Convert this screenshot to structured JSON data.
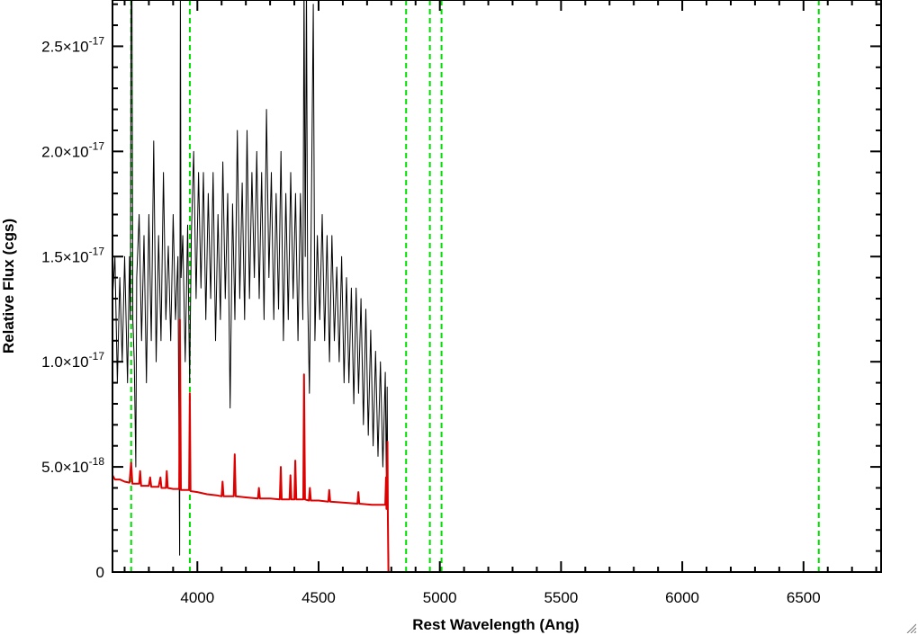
{
  "chart_data": {
    "type": "line",
    "title": "",
    "xlabel": "Rest Wavelength (Ang)",
    "ylabel": "Relative Flux (cgs)",
    "xlim": [
      3650,
      6820
    ],
    "ylim": [
      0,
      2.72e-17
    ],
    "x_ticks": [
      {
        "value": 4000,
        "label": "4000"
      },
      {
        "value": 4500,
        "label": "4500"
      },
      {
        "value": 5000,
        "label": "5000"
      },
      {
        "value": 5500,
        "label": "5500"
      },
      {
        "value": 6000,
        "label": "6000"
      },
      {
        "value": 6500,
        "label": "6500"
      }
    ],
    "y_ticks": [
      {
        "value": 0,
        "mantissa": "0",
        "exponent": ""
      },
      {
        "value": 5e-18,
        "mantissa": "5.0×10",
        "exponent": "-18"
      },
      {
        "value": 1e-17,
        "mantissa": "1.0×10",
        "exponent": "-17"
      },
      {
        "value": 1.5e-17,
        "mantissa": "1.5×10",
        "exponent": "-17"
      },
      {
        "value": 2e-17,
        "mantissa": "2.0×10",
        "exponent": "-17"
      },
      {
        "value": 2.5e-17,
        "mantissa": "2.5×10",
        "exponent": "-17"
      }
    ],
    "x_minor_step": 100,
    "y_minor_step": 1e-18,
    "grid": false,
    "legend": "none",
    "vertical_lines": [
      {
        "x": 3727,
        "color": "#00dd00",
        "style": "dashed"
      },
      {
        "x": 3969,
        "color": "#00dd00",
        "style": "dashed"
      },
      {
        "x": 4861,
        "color": "#00dd00",
        "style": "dashed"
      },
      {
        "x": 4959,
        "color": "#00dd00",
        "style": "dashed"
      },
      {
        "x": 5007,
        "color": "#00dd00",
        "style": "dashed"
      },
      {
        "x": 6563,
        "color": "#00dd00",
        "style": "dashed"
      }
    ],
    "series": [
      {
        "color": "#000000",
        "points": [
          [
            3650,
            1.3e-17
          ],
          [
            3660,
            1.5e-17
          ],
          [
            3670,
            9e-18
          ],
          [
            3680,
            1.4e-17
          ],
          [
            3690,
            1e-17
          ],
          [
            3700,
            1.5e-17
          ],
          [
            3712,
            9e-18
          ],
          [
            3720,
            1.5e-17
          ],
          [
            3724,
            1.2e-17
          ],
          [
            3727,
            2.8e-17
          ],
          [
            3730,
            2.8e-17
          ],
          [
            3734,
            1.2e-17
          ],
          [
            3740,
            1e-17
          ],
          [
            3746,
            5e-18
          ],
          [
            3750,
            1.4e-17
          ],
          [
            3760,
            1.7e-17
          ],
          [
            3770,
            1.1e-17
          ],
          [
            3780,
            1.6e-17
          ],
          [
            3790,
            9e-18
          ],
          [
            3800,
            1.7e-17
          ],
          [
            3810,
            1.1e-17
          ],
          [
            3820,
            2.05e-17
          ],
          [
            3830,
            1e-17
          ],
          [
            3840,
            1.6e-17
          ],
          [
            3850,
            1.1e-17
          ],
          [
            3860,
            1.9e-17
          ],
          [
            3870,
            1.2e-17
          ],
          [
            3880,
            1.55e-17
          ],
          [
            3890,
            1.1e-17
          ],
          [
            3900,
            1.7e-17
          ],
          [
            3910,
            1.2e-17
          ],
          [
            3920,
            1.5e-17
          ],
          [
            3927,
            8e-19
          ],
          [
            3930,
            2.8e-17
          ],
          [
            3933,
            1.4e-17
          ],
          [
            3940,
            1.6e-17
          ],
          [
            3950,
            1e-17
          ],
          [
            3960,
            1.65e-17
          ],
          [
            3968,
            9e-18
          ],
          [
            3975,
            1.6e-17
          ],
          [
            3985,
            2e-17
          ],
          [
            3995,
            1.3e-17
          ],
          [
            4005,
            1.9e-17
          ],
          [
            4015,
            1.35e-17
          ],
          [
            4025,
            1.9e-17
          ],
          [
            4035,
            1.2e-17
          ],
          [
            4045,
            1.8e-17
          ],
          [
            4055,
            1.3e-17
          ],
          [
            4065,
            1.9e-17
          ],
          [
            4075,
            1.1e-17
          ],
          [
            4085,
            1.7e-17
          ],
          [
            4095,
            1.2e-17
          ],
          [
            4105,
            1.95e-17
          ],
          [
            4115,
            1.3e-17
          ],
          [
            4125,
            1.8e-17
          ],
          [
            4135,
            7.8e-18
          ],
          [
            4145,
            1.75e-17
          ],
          [
            4155,
            1.2e-17
          ],
          [
            4165,
            2.1e-17
          ],
          [
            4175,
            1.3e-17
          ],
          [
            4185,
            1.85e-17
          ],
          [
            4195,
            1.2e-17
          ],
          [
            4205,
            2.1e-17
          ],
          [
            4215,
            1.3e-17
          ],
          [
            4225,
            1.9e-17
          ],
          [
            4235,
            1.4e-17
          ],
          [
            4245,
            2e-17
          ],
          [
            4255,
            1.3e-17
          ],
          [
            4265,
            1.9e-17
          ],
          [
            4275,
            1.2e-17
          ],
          [
            4285,
            2.2e-17
          ],
          [
            4295,
            1.4e-17
          ],
          [
            4305,
            1.9e-17
          ],
          [
            4315,
            1.2e-17
          ],
          [
            4325,
            1.8e-17
          ],
          [
            4335,
            1.25e-17
          ],
          [
            4345,
            2e-17
          ],
          [
            4355,
            1.1e-17
          ],
          [
            4365,
            1.8e-17
          ],
          [
            4375,
            1.2e-17
          ],
          [
            4385,
            1.9e-17
          ],
          [
            4395,
            1.3e-17
          ],
          [
            4405,
            1.8e-17
          ],
          [
            4415,
            1.1e-17
          ],
          [
            4425,
            1.8e-17
          ],
          [
            4435,
            1.2e-17
          ],
          [
            4440,
            2.8e-17
          ],
          [
            4445,
            1.5e-17
          ],
          [
            4450,
            2.8e-17
          ],
          [
            4455,
            1.3e-17
          ],
          [
            4462,
            8.5e-18
          ],
          [
            4470,
            1.7e-17
          ],
          [
            4478,
            2.7e-17
          ],
          [
            4485,
            1.1e-17
          ],
          [
            4495,
            1.6e-17
          ],
          [
            4505,
            1.2e-17
          ],
          [
            4515,
            1.7e-17
          ],
          [
            4525,
            1.1e-17
          ],
          [
            4535,
            1.6e-17
          ],
          [
            4545,
            1e-17
          ],
          [
            4555,
            1.6e-17
          ],
          [
            4565,
            1.1e-17
          ],
          [
            4575,
            1.45e-17
          ],
          [
            4585,
            1e-17
          ],
          [
            4595,
            1.5e-17
          ],
          [
            4605,
            9e-18
          ],
          [
            4615,
            1.4e-17
          ],
          [
            4625,
            9e-18
          ],
          [
            4635,
            1.35e-17
          ],
          [
            4645,
            8e-18
          ],
          [
            4655,
            1.35e-17
          ],
          [
            4665,
            8.5e-18
          ],
          [
            4675,
            1.3e-17
          ],
          [
            4685,
            7e-18
          ],
          [
            4695,
            1.25e-17
          ],
          [
            4705,
            6.5e-18
          ],
          [
            4715,
            1.15e-17
          ],
          [
            4725,
            6e-18
          ],
          [
            4735,
            1.05e-17
          ],
          [
            4745,
            5.5e-18
          ],
          [
            4755,
            1e-17
          ],
          [
            4765,
            5e-18
          ],
          [
            4775,
            9.5e-18
          ],
          [
            4780,
            4e-18
          ],
          [
            4783,
            8.8e-18
          ],
          [
            4786,
            2e-18
          ],
          [
            4790,
            0
          ],
          [
            4800,
            0
          ],
          [
            6820,
            0
          ]
        ]
      },
      {
        "color": "#dd0000",
        "points": [
          [
            3650,
            4.6e-18
          ],
          [
            3660,
            4.4e-18
          ],
          [
            3680,
            4.4e-18
          ],
          [
            3700,
            4.3e-18
          ],
          [
            3720,
            4.25e-18
          ],
          [
            3727,
            5.2e-18
          ],
          [
            3732,
            4.2e-18
          ],
          [
            3760,
            4.2e-18
          ],
          [
            3764,
            4.8e-18
          ],
          [
            3768,
            4.1e-18
          ],
          [
            3800,
            4.1e-18
          ],
          [
            3805,
            4.5e-18
          ],
          [
            3810,
            4.05e-18
          ],
          [
            3840,
            4.05e-18
          ],
          [
            3848,
            4.5e-18
          ],
          [
            3852,
            4e-18
          ],
          [
            3870,
            4e-18
          ],
          [
            3874,
            4.8e-18
          ],
          [
            3878,
            4e-18
          ],
          [
            3900,
            3.95e-18
          ],
          [
            3925,
            3.95e-18
          ],
          [
            3928,
            1.2e-17
          ],
          [
            3932,
            3.9e-18
          ],
          [
            3966,
            3.9e-18
          ],
          [
            3969,
            8.5e-18
          ],
          [
            3972,
            3.85e-18
          ],
          [
            4000,
            3.8e-18
          ],
          [
            4040,
            3.7e-18
          ],
          [
            4080,
            3.65e-18
          ],
          [
            4100,
            3.6e-18
          ],
          [
            4104,
            4.3e-18
          ],
          [
            4108,
            3.6e-18
          ],
          [
            4150,
            3.6e-18
          ],
          [
            4154,
            5.6e-18
          ],
          [
            4158,
            3.6e-18
          ],
          [
            4200,
            3.55e-18
          ],
          [
            4250,
            3.5e-18
          ],
          [
            4254,
            4e-18
          ],
          [
            4258,
            3.5e-18
          ],
          [
            4300,
            3.5e-18
          ],
          [
            4340,
            3.45e-18
          ],
          [
            4344,
            5e-18
          ],
          [
            4348,
            3.45e-18
          ],
          [
            4380,
            3.45e-18
          ],
          [
            4384,
            4.6e-18
          ],
          [
            4388,
            3.45e-18
          ],
          [
            4400,
            3.45e-18
          ],
          [
            4404,
            5.3e-18
          ],
          [
            4408,
            3.45e-18
          ],
          [
            4437,
            3.45e-18
          ],
          [
            4440,
            9.4e-18
          ],
          [
            4444,
            3.45e-18
          ],
          [
            4460,
            3.4e-18
          ],
          [
            4464,
            4e-18
          ],
          [
            4468,
            3.4e-18
          ],
          [
            4500,
            3.4e-18
          ],
          [
            4540,
            3.35e-18
          ],
          [
            4544,
            3.9e-18
          ],
          [
            4548,
            3.35e-18
          ],
          [
            4600,
            3.3e-18
          ],
          [
            4660,
            3.25e-18
          ],
          [
            4664,
            3.8e-18
          ],
          [
            4668,
            3.25e-18
          ],
          [
            4720,
            3.2e-18
          ],
          [
            4760,
            3.2e-18
          ],
          [
            4775,
            3.2e-18
          ],
          [
            4778,
            4.5e-18
          ],
          [
            4780,
            3e-18
          ],
          [
            4784,
            6.2e-18
          ],
          [
            4786,
            2.5e-18
          ],
          [
            4788,
            0
          ],
          [
            6820,
            0
          ]
        ]
      }
    ]
  }
}
